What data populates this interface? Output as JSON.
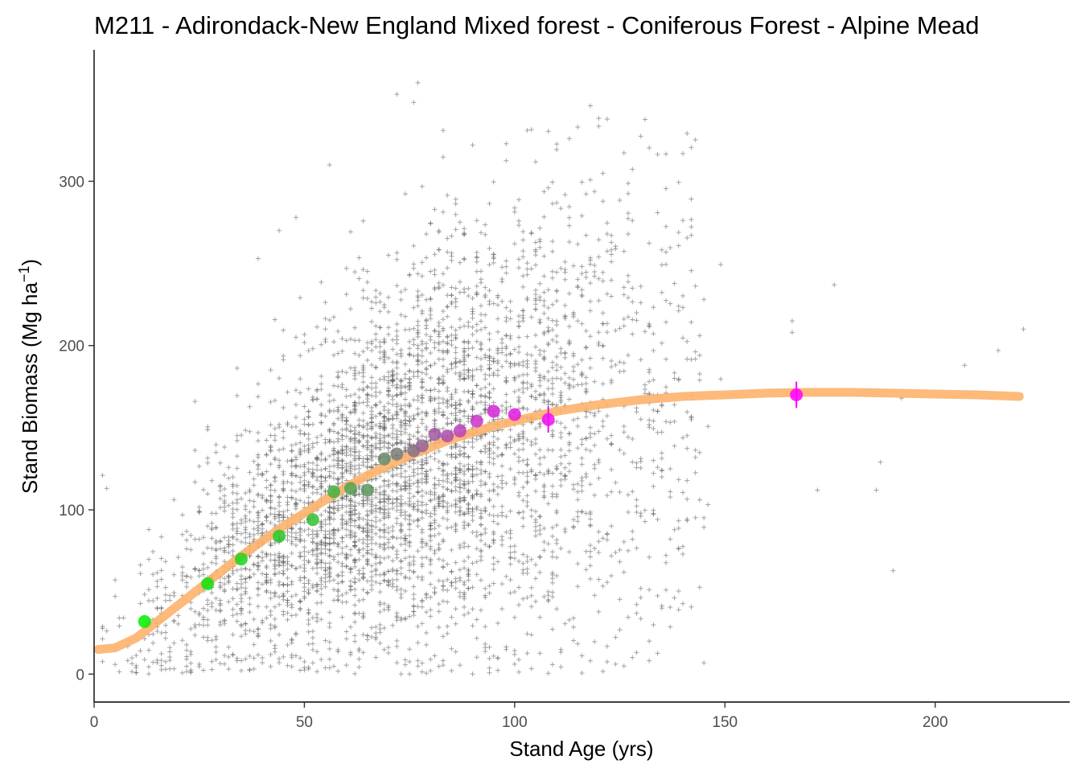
{
  "chart_data": {
    "type": "scatter",
    "title": "M211 -  Adirondack-New England Mixed forest - Coniferous Forest - Alpine Mead",
    "xlabel": "Stand Age (yrs)",
    "ylabel_main": "Stand Biomass (Mg ha",
    "ylabel_sup": "−1",
    "ylabel_close": ")",
    "xlim": [
      0,
      232
    ],
    "ylim": [
      -17,
      380
    ],
    "x_ticks": [
      0,
      50,
      100,
      150,
      200
    ],
    "y_ticks": [
      0,
      100,
      200,
      300
    ],
    "x_tick_labels": [
      "0",
      "50",
      "100",
      "150",
      "200"
    ],
    "y_tick_labels": [
      "0",
      "100",
      "200",
      "300"
    ],
    "grid": false,
    "legend": "none",
    "colors": {
      "raw_points": "#555555",
      "fit_curve": "#fdb26b",
      "binned_start": "#00ee00",
      "binned_end": "#ff00ff"
    },
    "raw_plots": {
      "marker": "plus",
      "count_shown_approx": 4500,
      "note": "dense cloud of individual plot values; representative sample",
      "extreme_points": [
        {
          "x": 77,
          "y": 360
        },
        {
          "x": 72,
          "y": 353
        },
        {
          "x": 76,
          "y": 348
        },
        {
          "x": 118,
          "y": 346
        },
        {
          "x": 115,
          "y": 333
        },
        {
          "x": 103,
          "y": 331
        },
        {
          "x": 83,
          "y": 331
        },
        {
          "x": 56,
          "y": 310
        },
        {
          "x": 48,
          "y": 278
        },
        {
          "x": 44,
          "y": 270
        },
        {
          "x": 39,
          "y": 253
        },
        {
          "x": 176,
          "y": 237
        },
        {
          "x": 221,
          "y": 210
        },
        {
          "x": 215,
          "y": 197
        },
        {
          "x": 166,
          "y": 215
        },
        {
          "x": 166,
          "y": 208
        },
        {
          "x": 207,
          "y": 188
        },
        {
          "x": 192,
          "y": 168
        },
        {
          "x": 187,
          "y": 129
        },
        {
          "x": 186,
          "y": 112
        },
        {
          "x": 172,
          "y": 112
        },
        {
          "x": 190,
          "y": 63
        },
        {
          "x": 133,
          "y": 30
        },
        {
          "x": 125,
          "y": 27
        },
        {
          "x": 111,
          "y": 15
        },
        {
          "x": 75,
          "y": 0
        },
        {
          "x": 2,
          "y": 121
        },
        {
          "x": 3,
          "y": 113
        },
        {
          "x": 24,
          "y": 166
        },
        {
          "x": 13,
          "y": 88
        }
      ]
    },
    "fit_curve": {
      "x": [
        1,
        5,
        10,
        15,
        20,
        25,
        30,
        35,
        40,
        45,
        50,
        55,
        60,
        65,
        70,
        75,
        80,
        85,
        90,
        95,
        100,
        110,
        120,
        130,
        140,
        150,
        160,
        170,
        180,
        190,
        200,
        210,
        220
      ],
      "y": [
        15,
        16,
        22,
        32,
        42,
        52,
        62,
        72,
        81,
        90,
        98,
        106,
        114,
        121,
        127,
        133,
        138,
        143,
        147,
        151,
        154,
        160,
        164,
        167,
        169,
        170,
        171,
        171.5,
        171.5,
        171,
        170.5,
        170,
        169
      ]
    },
    "binned_means": {
      "x": [
        12,
        27,
        35,
        44,
        52,
        57,
        61,
        65,
        69,
        72,
        76,
        78,
        81,
        84,
        87,
        91,
        95,
        100,
        108,
        167
      ],
      "y": [
        32,
        55,
        70,
        84,
        94,
        111,
        113,
        112,
        131,
        134,
        136,
        139,
        146,
        145,
        148,
        154,
        160,
        158,
        155,
        170
      ],
      "err": [
        0,
        0,
        0,
        0,
        0,
        0,
        0,
        0,
        0,
        0,
        0,
        0,
        0,
        0,
        0,
        0,
        0,
        0,
        8,
        8
      ]
    }
  }
}
